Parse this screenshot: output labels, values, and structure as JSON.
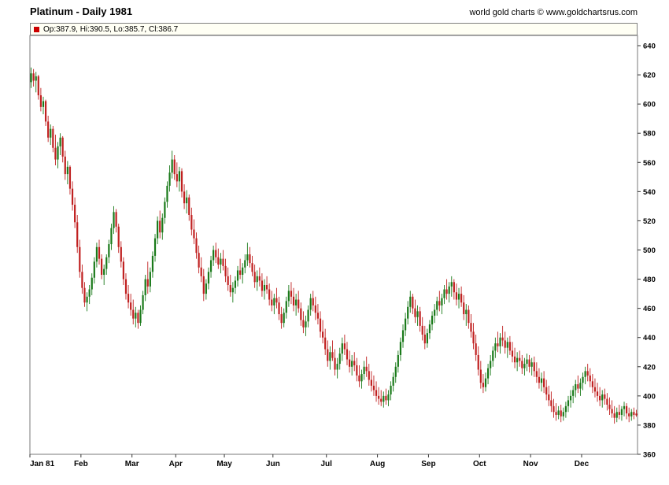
{
  "header": {
    "title": "Platinum - Daily 1981",
    "copyright": "world gold charts © www.goldchartsrus.com"
  },
  "legend": {
    "marker_color": "#cc0000",
    "text": "Op:387.9, Hi:390.5, Lo:385.7, Cl:386.7"
  },
  "chart_data": {
    "type": "candlestick",
    "title": "Platinum - Daily 1981",
    "xlabel": "",
    "ylabel": "",
    "grid": false,
    "legend_position": "top-left",
    "ylim": [
      360,
      640
    ],
    "y_ticks": [
      360,
      380,
      400,
      420,
      440,
      460,
      480,
      500,
      520,
      540,
      560,
      580,
      600,
      620,
      640
    ],
    "num_days": 250,
    "up_color": "#1a7a1a",
    "down_color": "#c02020",
    "last_quote": {
      "open": 387.9,
      "high": 390.5,
      "low": 385.7,
      "close": 386.7
    },
    "x_axis_months": [
      {
        "label": "Jan 81",
        "day": 0
      },
      {
        "label": "Feb",
        "day": 21
      },
      {
        "label": "Mar",
        "day": 42
      },
      {
        "label": "Apr",
        "day": 60
      },
      {
        "label": "May",
        "day": 80
      },
      {
        "label": "Jun",
        "day": 100
      },
      {
        "label": "Jul",
        "day": 122
      },
      {
        "label": "Aug",
        "day": 143
      },
      {
        "label": "Sep",
        "day": 164
      },
      {
        "label": "Oct",
        "day": 185
      },
      {
        "label": "Nov",
        "day": 206
      },
      {
        "label": "Dec",
        "day": 227
      }
    ],
    "candles": [
      [
        615,
        625,
        611,
        621
      ],
      [
        621,
        624,
        612,
        616
      ],
      [
        616,
        622,
        608,
        619
      ],
      [
        619,
        620,
        603,
        606
      ],
      [
        606,
        611,
        595,
        598
      ],
      [
        598,
        605,
        593,
        602
      ],
      [
        602,
        603,
        585,
        588
      ],
      [
        588,
        592,
        574,
        577
      ],
      [
        577,
        586,
        572,
        583
      ],
      [
        583,
        585,
        567,
        570
      ],
      [
        570,
        579,
        558,
        562
      ],
      [
        562,
        574,
        556,
        571
      ],
      [
        571,
        580,
        565,
        577
      ],
      [
        577,
        578,
        560,
        564
      ],
      [
        564,
        568,
        548,
        552
      ],
      [
        552,
        561,
        545,
        557
      ],
      [
        557,
        558,
        538,
        542
      ],
      [
        542,
        547,
        527,
        531
      ],
      [
        531,
        536,
        515,
        519
      ],
      [
        519,
        524,
        498,
        502
      ],
      [
        502,
        507,
        481,
        485
      ],
      [
        485,
        490,
        470,
        474
      ],
      [
        474,
        478,
        461,
        464
      ],
      [
        464,
        471,
        458,
        468
      ],
      [
        468,
        476,
        463,
        473
      ],
      [
        473,
        484,
        469,
        481
      ],
      [
        481,
        495,
        477,
        492
      ],
      [
        492,
        505,
        488,
        502
      ],
      [
        502,
        507,
        490,
        494
      ],
      [
        494,
        497,
        480,
        483
      ],
      [
        483,
        490,
        476,
        487
      ],
      [
        487,
        497,
        483,
        495
      ],
      [
        495,
        507,
        491,
        504
      ],
      [
        504,
        518,
        500,
        515
      ],
      [
        515,
        530,
        511,
        526
      ],
      [
        526,
        528,
        512,
        516
      ],
      [
        516,
        518,
        498,
        502
      ],
      [
        502,
        506,
        488,
        492
      ],
      [
        492,
        495,
        476,
        480
      ],
      [
        480,
        484,
        466,
        470
      ],
      [
        470,
        476,
        460,
        464
      ],
      [
        464,
        470,
        455,
        459
      ],
      [
        459,
        466,
        449,
        453
      ],
      [
        453,
        461,
        447,
        457
      ],
      [
        457,
        459,
        446,
        450
      ],
      [
        450,
        462,
        448,
        459
      ],
      [
        459,
        472,
        456,
        469
      ],
      [
        469,
        483,
        465,
        480
      ],
      [
        480,
        492,
        470,
        475
      ],
      [
        475,
        488,
        471,
        485
      ],
      [
        485,
        499,
        481,
        496
      ],
      [
        496,
        511,
        492,
        508
      ],
      [
        508,
        523,
        504,
        520
      ],
      [
        520,
        527,
        508,
        512
      ],
      [
        512,
        525,
        507,
        522
      ],
      [
        522,
        536,
        518,
        533
      ],
      [
        533,
        547,
        529,
        544
      ],
      [
        544,
        558,
        540,
        553
      ],
      [
        553,
        568,
        549,
        562
      ],
      [
        562,
        565,
        548,
        552
      ],
      [
        552,
        560,
        543,
        547
      ],
      [
        547,
        557,
        540,
        554
      ],
      [
        554,
        556,
        536,
        540
      ],
      [
        540,
        545,
        528,
        532
      ],
      [
        532,
        541,
        525,
        536
      ],
      [
        536,
        538,
        520,
        524
      ],
      [
        524,
        529,
        510,
        514
      ],
      [
        514,
        521,
        504,
        508
      ],
      [
        508,
        512,
        494,
        498
      ],
      [
        498,
        503,
        484,
        488
      ],
      [
        488,
        495,
        478,
        482
      ],
      [
        482,
        487,
        465,
        470
      ],
      [
        470,
        480,
        466,
        477
      ],
      [
        477,
        488,
        473,
        485
      ],
      [
        485,
        496,
        481,
        493
      ],
      [
        493,
        503,
        489,
        500
      ],
      [
        500,
        505,
        491,
        495
      ],
      [
        495,
        501,
        487,
        490
      ],
      [
        490,
        498,
        484,
        494
      ],
      [
        494,
        500,
        486,
        489
      ],
      [
        489,
        494,
        478,
        482
      ],
      [
        482,
        488,
        472,
        476
      ],
      [
        476,
        483,
        468,
        471
      ],
      [
        471,
        478,
        464,
        474
      ],
      [
        474,
        482,
        470,
        479
      ],
      [
        479,
        489,
        475,
        486
      ],
      [
        486,
        494,
        480,
        483
      ],
      [
        483,
        491,
        477,
        488
      ],
      [
        488,
        497,
        484,
        493
      ],
      [
        493,
        505,
        489,
        497
      ],
      [
        497,
        502,
        488,
        491
      ],
      [
        491,
        496,
        482,
        485
      ],
      [
        485,
        490,
        474,
        478
      ],
      [
        478,
        486,
        472,
        482
      ],
      [
        482,
        488,
        475,
        479
      ],
      [
        479,
        484,
        468,
        472
      ],
      [
        472,
        480,
        466,
        476
      ],
      [
        476,
        482,
        470,
        473
      ],
      [
        473,
        477,
        462,
        466
      ],
      [
        466,
        472,
        458,
        462
      ],
      [
        462,
        470,
        456,
        467
      ],
      [
        467,
        474,
        460,
        464
      ],
      [
        464,
        468,
        452,
        456
      ],
      [
        456,
        461,
        446,
        450
      ],
      [
        450,
        460,
        447,
        457
      ],
      [
        457,
        468,
        453,
        465
      ],
      [
        465,
        476,
        461,
        472
      ],
      [
        472,
        478,
        463,
        468
      ],
      [
        468,
        474,
        458,
        462
      ],
      [
        462,
        470,
        455,
        466
      ],
      [
        466,
        472,
        457,
        460
      ],
      [
        460,
        464,
        448,
        452
      ],
      [
        452,
        458,
        443,
        447
      ],
      [
        447,
        455,
        441,
        451
      ],
      [
        451,
        462,
        447,
        459
      ],
      [
        459,
        470,
        455,
        467
      ],
      [
        467,
        472,
        458,
        462
      ],
      [
        462,
        468,
        452,
        457
      ],
      [
        457,
        463,
        449,
        453
      ],
      [
        453,
        458,
        440,
        444
      ],
      [
        444,
        452,
        436,
        440
      ],
      [
        440,
        446,
        428,
        432
      ],
      [
        432,
        438,
        420,
        424
      ],
      [
        424,
        434,
        418,
        430
      ],
      [
        430,
        438,
        424,
        426
      ],
      [
        426,
        432,
        414,
        418
      ],
      [
        418,
        426,
        412,
        422
      ],
      [
        422,
        433,
        418,
        429
      ],
      [
        429,
        440,
        424,
        436
      ],
      [
        436,
        442,
        428,
        432
      ],
      [
        432,
        437,
        421,
        425
      ],
      [
        425,
        431,
        416,
        420
      ],
      [
        420,
        428,
        414,
        424
      ],
      [
        424,
        430,
        417,
        421
      ],
      [
        421,
        426,
        410,
        414
      ],
      [
        414,
        421,
        406,
        410
      ],
      [
        410,
        418,
        405,
        415
      ],
      [
        415,
        424,
        411,
        420
      ],
      [
        420,
        427,
        413,
        417
      ],
      [
        417,
        422,
        407,
        411
      ],
      [
        411,
        417,
        403,
        407
      ],
      [
        407,
        414,
        400,
        404
      ],
      [
        404,
        410,
        396,
        400
      ],
      [
        400,
        406,
        394,
        398
      ],
      [
        398,
        404,
        393,
        396
      ],
      [
        396,
        403,
        392,
        400
      ],
      [
        400,
        405,
        394,
        397
      ],
      [
        397,
        404,
        393,
        401
      ],
      [
        401,
        410,
        397,
        407
      ],
      [
        407,
        416,
        403,
        413
      ],
      [
        413,
        423,
        409,
        420
      ],
      [
        420,
        431,
        416,
        428
      ],
      [
        428,
        440,
        424,
        437
      ],
      [
        437,
        449,
        433,
        445
      ],
      [
        445,
        457,
        441,
        453
      ],
      [
        453,
        465,
        449,
        461
      ],
      [
        461,
        472,
        457,
        468
      ],
      [
        468,
        470,
        456,
        460
      ],
      [
        460,
        466,
        450,
        454
      ],
      [
        454,
        462,
        448,
        458
      ],
      [
        458,
        461,
        444,
        448
      ],
      [
        448,
        454,
        438,
        442
      ],
      [
        442,
        448,
        432,
        436
      ],
      [
        436,
        446,
        433,
        443
      ],
      [
        443,
        452,
        439,
        449
      ],
      [
        449,
        458,
        445,
        455
      ],
      [
        455,
        463,
        450,
        459
      ],
      [
        459,
        468,
        455,
        465
      ],
      [
        465,
        472,
        458,
        462
      ],
      [
        462,
        470,
        456,
        467
      ],
      [
        467,
        476,
        463,
        473
      ],
      [
        473,
        480,
        466,
        470
      ],
      [
        470,
        478,
        464,
        475
      ],
      [
        475,
        482,
        468,
        478
      ],
      [
        478,
        480,
        466,
        471
      ],
      [
        471,
        477,
        462,
        466
      ],
      [
        466,
        474,
        460,
        470
      ],
      [
        470,
        475,
        461,
        464
      ],
      [
        464,
        469,
        452,
        456
      ],
      [
        456,
        463,
        448,
        459
      ],
      [
        459,
        462,
        446,
        450
      ],
      [
        450,
        456,
        440,
        444
      ],
      [
        444,
        450,
        432,
        436
      ],
      [
        436,
        442,
        424,
        428
      ],
      [
        428,
        434,
        414,
        418
      ],
      [
        418,
        424,
        405,
        409
      ],
      [
        409,
        415,
        402,
        406
      ],
      [
        406,
        416,
        403,
        412
      ],
      [
        412,
        422,
        408,
        419
      ],
      [
        419,
        428,
        414,
        424
      ],
      [
        424,
        434,
        420,
        431
      ],
      [
        431,
        440,
        426,
        436
      ],
      [
        436,
        444,
        430,
        434
      ],
      [
        434,
        443,
        429,
        440
      ],
      [
        440,
        448,
        434,
        438
      ],
      [
        438,
        444,
        429,
        433
      ],
      [
        433,
        440,
        426,
        437
      ],
      [
        437,
        441,
        428,
        431
      ],
      [
        431,
        437,
        423,
        427
      ],
      [
        427,
        433,
        419,
        423
      ],
      [
        423,
        430,
        417,
        426
      ],
      [
        426,
        431,
        420,
        424
      ],
      [
        424,
        428,
        415,
        419
      ],
      [
        419,
        426,
        414,
        422
      ],
      [
        422,
        429,
        417,
        425
      ],
      [
        425,
        428,
        416,
        420
      ],
      [
        420,
        426,
        414,
        423
      ],
      [
        423,
        427,
        413,
        417
      ],
      [
        417,
        423,
        409,
        413
      ],
      [
        413,
        419,
        405,
        409
      ],
      [
        409,
        416,
        403,
        412
      ],
      [
        412,
        417,
        402,
        406
      ],
      [
        406,
        411,
        397,
        401
      ],
      [
        401,
        407,
        393,
        397
      ],
      [
        397,
        403,
        389,
        393
      ],
      [
        393,
        398,
        385,
        389
      ],
      [
        389,
        395,
        383,
        387
      ],
      [
        387,
        393,
        384,
        390
      ],
      [
        390,
        394,
        382,
        386
      ],
      [
        386,
        392,
        383,
        389
      ],
      [
        389,
        396,
        385,
        393
      ],
      [
        393,
        400,
        389,
        397
      ],
      [
        397,
        404,
        392,
        400
      ],
      [
        400,
        407,
        395,
        404
      ],
      [
        404,
        411,
        399,
        408
      ],
      [
        408,
        414,
        402,
        405
      ],
      [
        405,
        412,
        400,
        409
      ],
      [
        409,
        416,
        404,
        413
      ],
      [
        413,
        420,
        408,
        417
      ],
      [
        417,
        422,
        410,
        414
      ],
      [
        414,
        419,
        406,
        410
      ],
      [
        410,
        415,
        402,
        406
      ],
      [
        406,
        412,
        399,
        403
      ],
      [
        403,
        409,
        396,
        400
      ],
      [
        400,
        406,
        393,
        397
      ],
      [
        397,
        404,
        392,
        401
      ],
      [
        401,
        405,
        394,
        398
      ],
      [
        398,
        402,
        390,
        394
      ],
      [
        394,
        399,
        387,
        391
      ],
      [
        391,
        397,
        385,
        388
      ],
      [
        388,
        393,
        381,
        385
      ],
      [
        385,
        392,
        382,
        389
      ],
      [
        389,
        394,
        384,
        387
      ],
      [
        387,
        393,
        383,
        391
      ],
      [
        391,
        396,
        386,
        393
      ],
      [
        393,
        395,
        384,
        388
      ],
      [
        388,
        392,
        382,
        386
      ],
      [
        386,
        391,
        383,
        389
      ],
      [
        389,
        392,
        384,
        387
      ],
      [
        387.9,
        390.5,
        385.7,
        386.7
      ]
    ]
  }
}
